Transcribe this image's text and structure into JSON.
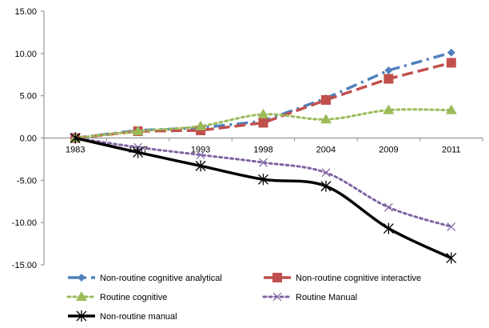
{
  "chart_data": {
    "type": "line",
    "title": "",
    "xlabel": "",
    "ylabel": "",
    "categories": [
      "1983",
      "1987",
      "1993",
      "1998",
      "2004",
      "2009",
      "2011"
    ],
    "ylim": [
      -15,
      15
    ],
    "yticks": [
      15,
      10,
      5,
      0,
      -5,
      -10,
      -15
    ],
    "ytick_labels": [
      "15.00",
      "10.00",
      "5.00",
      "0.00",
      "-5.00",
      "-10.00",
      "-15.00"
    ],
    "grid": false,
    "legend_position": "bottom",
    "series": [
      {
        "name": "Non-routine cognitive analytical",
        "values": [
          0,
          0.9,
          1.2,
          2.0,
          4.7,
          8.0,
          10.1
        ],
        "color": "#4F81BD",
        "dash": "dash-dot",
        "marker": "diamond",
        "smooth": false
      },
      {
        "name": "Non-routine cognitive interactive",
        "values": [
          0,
          0.8,
          0.9,
          1.8,
          4.5,
          7.0,
          8.9
        ],
        "color": "#C0504D",
        "dash": "dash",
        "marker": "square",
        "smooth": false
      },
      {
        "name": "Routine cognitive",
        "values": [
          0,
          0.8,
          1.4,
          2.8,
          2.2,
          3.3,
          3.3
        ],
        "color": "#9BBB59",
        "dash": "dot",
        "marker": "triangle",
        "smooth": true
      },
      {
        "name": "Routine Manual",
        "values": [
          0,
          -1.1,
          -2.0,
          -2.9,
          -4.1,
          -8.2,
          -10.5
        ],
        "color": "#8064A2",
        "dash": "dot",
        "marker": "x",
        "smooth": true
      },
      {
        "name": "Non-routine manual",
        "values": [
          0,
          -1.7,
          -3.3,
          -4.9,
          -5.7,
          -10.7,
          -14.2
        ],
        "color": "#000000",
        "dash": "solid",
        "marker": "star",
        "smooth": true
      }
    ]
  }
}
